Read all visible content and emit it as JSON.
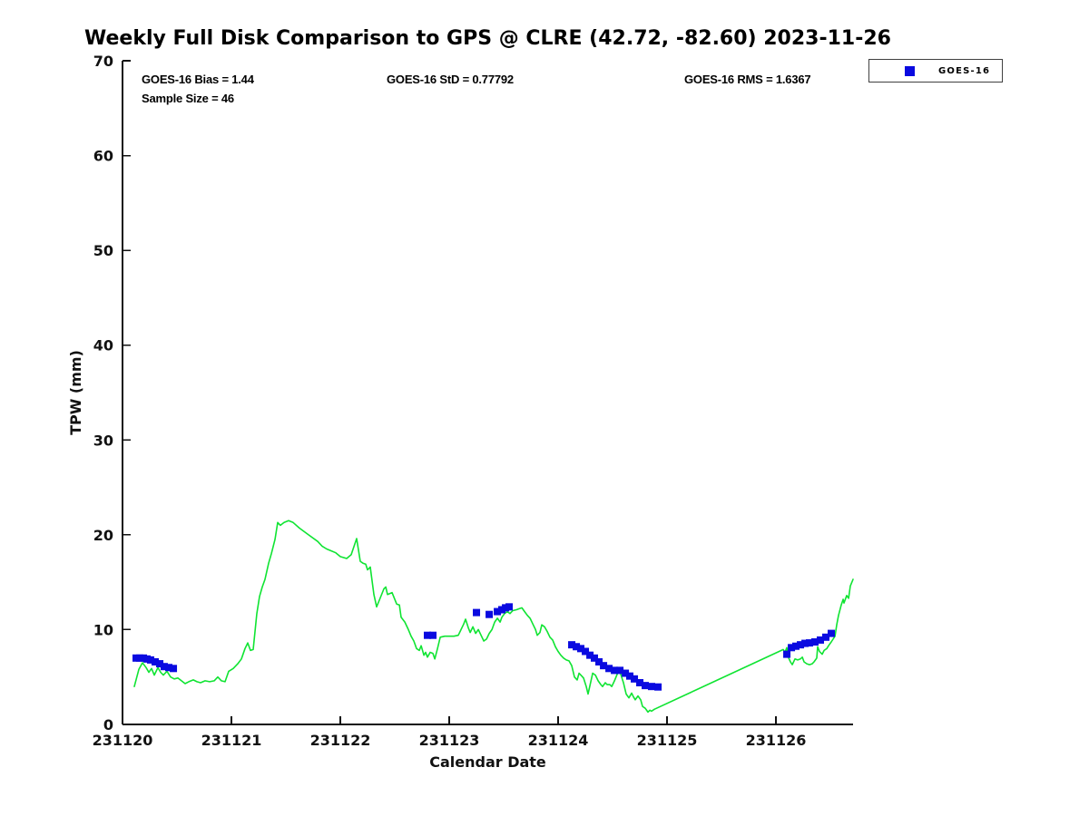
{
  "figure": {
    "title": "Weekly Full Disk Comparison to GPS @ CLRE (42.72, -82.60) 2023-11-26",
    "annotations": {
      "bias": "GOES-16 Bias = 1.44",
      "std": "GOES-16 StD = 0.77792",
      "rms": "GOES-16 RMS = 1.6367",
      "sample_size": "Sample Size = 46"
    },
    "legend": {
      "label": "GOES-16"
    }
  },
  "chart_data": {
    "type": "line+scatter",
    "title": "Weekly Full Disk Comparison to GPS @ CLRE (42.72, -82.60) 2023-11-26",
    "xlabel": "Calendar Date",
    "ylabel": "TPW (mm)",
    "x_base": 231120,
    "xlim_offsets": [
      0,
      6.708
    ],
    "ylim": [
      0,
      70
    ],
    "xtick_labels": [
      "231120",
      "231121",
      "231122",
      "231123",
      "231124",
      "231125",
      "231126"
    ],
    "xtick_offsets": [
      0,
      1,
      2,
      3,
      4,
      5,
      6
    ],
    "yticks": [
      0,
      10,
      20,
      30,
      40,
      50,
      60,
      70
    ],
    "grid": false,
    "legend_position": "top-right-outside",
    "stats": {
      "bias": 1.44,
      "std": 0.77792,
      "rms": 1.6367,
      "sample_size": 46
    },
    "series": [
      {
        "name": "GPS TPW",
        "type": "line",
        "color": "#0fe432",
        "in_legend": false,
        "points": [
          [
            0.108,
            4.0
          ],
          [
            0.15,
            5.8
          ],
          [
            0.183,
            6.5
          ],
          [
            0.217,
            6.0
          ],
          [
            0.242,
            5.5
          ],
          [
            0.267,
            5.9
          ],
          [
            0.292,
            5.2
          ],
          [
            0.325,
            6.0
          ],
          [
            0.35,
            5.5
          ],
          [
            0.375,
            5.2
          ],
          [
            0.408,
            5.6
          ],
          [
            0.442,
            5.0
          ],
          [
            0.475,
            4.8
          ],
          [
            0.508,
            4.9
          ],
          [
            0.542,
            4.6
          ],
          [
            0.575,
            4.3
          ],
          [
            0.608,
            4.5
          ],
          [
            0.65,
            4.7
          ],
          [
            0.683,
            4.5
          ],
          [
            0.717,
            4.4
          ],
          [
            0.758,
            4.6
          ],
          [
            0.8,
            4.5
          ],
          [
            0.842,
            4.6
          ],
          [
            0.875,
            5.0
          ],
          [
            0.908,
            4.6
          ],
          [
            0.942,
            4.5
          ],
          [
            0.975,
            5.6
          ],
          [
            1.017,
            5.9
          ],
          [
            1.058,
            6.4
          ],
          [
            1.092,
            6.9
          ],
          [
            1.125,
            8.0
          ],
          [
            1.15,
            8.6
          ],
          [
            1.175,
            7.8
          ],
          [
            1.2,
            7.9
          ],
          [
            1.233,
            11.7
          ],
          [
            1.258,
            13.5
          ],
          [
            1.283,
            14.5
          ],
          [
            1.308,
            15.3
          ],
          [
            1.342,
            17.0
          ],
          [
            1.367,
            18.0
          ],
          [
            1.4,
            19.5
          ],
          [
            1.425,
            21.3
          ],
          [
            1.45,
            21.0
          ],
          [
            1.483,
            21.3
          ],
          [
            1.525,
            21.5
          ],
          [
            1.567,
            21.3
          ],
          [
            1.625,
            20.7
          ],
          [
            1.708,
            20.0
          ],
          [
            1.792,
            19.3
          ],
          [
            1.833,
            18.8
          ],
          [
            1.875,
            18.5
          ],
          [
            1.917,
            18.3
          ],
          [
            1.958,
            18.1
          ],
          [
            2.0,
            17.7
          ],
          [
            2.058,
            17.5
          ],
          [
            2.1,
            17.9
          ],
          [
            2.15,
            19.6
          ],
          [
            2.183,
            17.2
          ],
          [
            2.208,
            17.0
          ],
          [
            2.233,
            16.9
          ],
          [
            2.25,
            16.3
          ],
          [
            2.275,
            16.6
          ],
          [
            2.308,
            13.7
          ],
          [
            2.333,
            12.4
          ],
          [
            2.358,
            13.1
          ],
          [
            2.4,
            14.3
          ],
          [
            2.417,
            14.5
          ],
          [
            2.433,
            13.7
          ],
          [
            2.475,
            13.9
          ],
          [
            2.517,
            12.7
          ],
          [
            2.542,
            12.6
          ],
          [
            2.558,
            11.3
          ],
          [
            2.592,
            10.8
          ],
          [
            2.625,
            10.0
          ],
          [
            2.65,
            9.3
          ],
          [
            2.675,
            8.8
          ],
          [
            2.7,
            8.0
          ],
          [
            2.725,
            7.8
          ],
          [
            2.742,
            8.3
          ],
          [
            2.767,
            7.3
          ],
          [
            2.783,
            7.6
          ],
          [
            2.8,
            7.1
          ],
          [
            2.825,
            7.6
          ],
          [
            2.85,
            7.5
          ],
          [
            2.867,
            6.9
          ],
          [
            2.892,
            8.0
          ],
          [
            2.917,
            9.2
          ],
          [
            2.958,
            9.3
          ],
          [
            3.042,
            9.3
          ],
          [
            3.083,
            9.4
          ],
          [
            3.133,
            10.6
          ],
          [
            3.15,
            11.1
          ],
          [
            3.175,
            10.2
          ],
          [
            3.192,
            9.7
          ],
          [
            3.217,
            10.3
          ],
          [
            3.242,
            9.6
          ],
          [
            3.267,
            10.0
          ],
          [
            3.292,
            9.4
          ],
          [
            3.317,
            8.8
          ],
          [
            3.342,
            9.0
          ],
          [
            3.367,
            9.6
          ],
          [
            3.392,
            10.0
          ],
          [
            3.417,
            10.8
          ],
          [
            3.442,
            11.2
          ],
          [
            3.467,
            10.8
          ],
          [
            3.483,
            11.3
          ],
          [
            3.508,
            11.7
          ],
          [
            3.533,
            11.9
          ],
          [
            3.558,
            11.7
          ],
          [
            3.583,
            12.0
          ],
          [
            3.617,
            12.1
          ],
          [
            3.642,
            12.2
          ],
          [
            3.667,
            12.3
          ],
          [
            3.692,
            11.9
          ],
          [
            3.717,
            11.5
          ],
          [
            3.742,
            11.2
          ],
          [
            3.767,
            10.6
          ],
          [
            3.792,
            10.0
          ],
          [
            3.808,
            9.4
          ],
          [
            3.833,
            9.7
          ],
          [
            3.85,
            10.5
          ],
          [
            3.875,
            10.3
          ],
          [
            3.9,
            9.8
          ],
          [
            3.925,
            9.2
          ],
          [
            3.95,
            8.9
          ],
          [
            3.975,
            8.2
          ],
          [
            4.0,
            7.7
          ],
          [
            4.025,
            7.3
          ],
          [
            4.05,
            7.0
          ],
          [
            4.075,
            6.8
          ],
          [
            4.1,
            6.7
          ],
          [
            4.125,
            6.2
          ],
          [
            4.15,
            5.0
          ],
          [
            4.175,
            4.7
          ],
          [
            4.192,
            5.4
          ],
          [
            4.217,
            5.1
          ],
          [
            4.233,
            4.9
          ],
          [
            4.258,
            4.0
          ],
          [
            4.275,
            3.2
          ],
          [
            4.3,
            4.5
          ],
          [
            4.317,
            5.4
          ],
          [
            4.342,
            5.2
          ],
          [
            4.367,
            4.6
          ],
          [
            4.392,
            4.2
          ],
          [
            4.408,
            4.0
          ],
          [
            4.433,
            4.4
          ],
          [
            4.45,
            4.2
          ],
          [
            4.475,
            4.2
          ],
          [
            4.492,
            4.0
          ],
          [
            4.517,
            4.6
          ],
          [
            4.542,
            5.3
          ],
          [
            4.558,
            5.9
          ],
          [
            4.583,
            5.0
          ],
          [
            4.6,
            4.4
          ],
          [
            4.625,
            3.2
          ],
          [
            4.65,
            2.8
          ],
          [
            4.675,
            3.3
          ],
          [
            4.692,
            2.9
          ],
          [
            4.708,
            2.6
          ],
          [
            4.733,
            3.0
          ],
          [
            4.758,
            2.6
          ],
          [
            4.775,
            1.9
          ],
          [
            4.8,
            1.7
          ],
          [
            4.825,
            1.3
          ],
          [
            4.842,
            1.5
          ],
          [
            4.858,
            1.4
          ],
          [
            4.883,
            1.6
          ],
          [
            6.067,
            7.9
          ],
          [
            6.083,
            7.6
          ],
          [
            6.1,
            8.1
          ],
          [
            6.117,
            7.0
          ],
          [
            6.133,
            6.6
          ],
          [
            6.15,
            6.3
          ],
          [
            6.175,
            6.9
          ],
          [
            6.2,
            6.8
          ],
          [
            6.225,
            6.9
          ],
          [
            6.242,
            7.1
          ],
          [
            6.258,
            6.6
          ],
          [
            6.283,
            6.4
          ],
          [
            6.308,
            6.3
          ],
          [
            6.333,
            6.4
          ],
          [
            6.35,
            6.6
          ],
          [
            6.375,
            7.0
          ],
          [
            6.383,
            8.2
          ],
          [
            6.4,
            7.7
          ],
          [
            6.425,
            7.4
          ],
          [
            6.442,
            7.8
          ],
          [
            6.467,
            8.0
          ],
          [
            6.483,
            8.3
          ],
          [
            6.508,
            8.7
          ],
          [
            6.542,
            9.3
          ],
          [
            6.558,
            10.5
          ],
          [
            6.575,
            11.5
          ],
          [
            6.6,
            12.6
          ],
          [
            6.617,
            13.2
          ],
          [
            6.625,
            12.8
          ],
          [
            6.65,
            13.6
          ],
          [
            6.667,
            13.3
          ],
          [
            6.683,
            14.6
          ],
          [
            6.708,
            15.3
          ]
        ]
      },
      {
        "name": "GOES-16",
        "type": "scatter",
        "marker": "square",
        "color": "#0a0ae0",
        "in_legend": true,
        "points": [
          [
            0.125,
            7.0
          ],
          [
            0.158,
            7.0
          ],
          [
            0.192,
            7.0
          ],
          [
            0.225,
            6.9
          ],
          [
            0.258,
            6.8
          ],
          [
            0.3,
            6.6
          ],
          [
            0.342,
            6.4
          ],
          [
            0.383,
            6.1
          ],
          [
            0.425,
            6.0
          ],
          [
            0.467,
            5.9
          ],
          [
            2.8,
            9.4
          ],
          [
            2.85,
            9.4
          ],
          [
            3.25,
            11.8
          ],
          [
            3.367,
            11.6
          ],
          [
            3.442,
            11.9
          ],
          [
            3.483,
            12.1
          ],
          [
            3.517,
            12.3
          ],
          [
            3.55,
            12.4
          ],
          [
            4.125,
            8.4
          ],
          [
            4.167,
            8.2
          ],
          [
            4.208,
            8.0
          ],
          [
            4.25,
            7.7
          ],
          [
            4.292,
            7.3
          ],
          [
            4.333,
            7.0
          ],
          [
            4.375,
            6.6
          ],
          [
            4.417,
            6.2
          ],
          [
            4.467,
            5.9
          ],
          [
            4.517,
            5.7
          ],
          [
            4.567,
            5.7
          ],
          [
            4.617,
            5.4
          ],
          [
            4.658,
            5.1
          ],
          [
            4.7,
            4.8
          ],
          [
            4.75,
            4.4
          ],
          [
            4.8,
            4.1
          ],
          [
            4.858,
            4.0
          ],
          [
            4.917,
            3.95
          ],
          [
            6.1,
            7.4
          ],
          [
            6.142,
            8.1
          ],
          [
            6.183,
            8.25
          ],
          [
            6.225,
            8.4
          ],
          [
            6.267,
            8.55
          ],
          [
            6.308,
            8.6
          ],
          [
            6.358,
            8.7
          ],
          [
            6.408,
            8.9
          ],
          [
            6.458,
            9.2
          ],
          [
            6.508,
            9.6
          ]
        ]
      }
    ]
  }
}
